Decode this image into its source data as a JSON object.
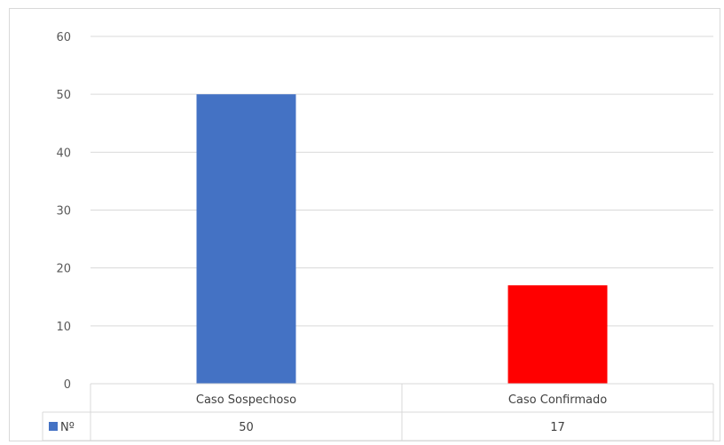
{
  "chart_data": {
    "type": "bar",
    "categories": [
      "Caso Sospechoso",
      "Caso Confirmado"
    ],
    "series": [
      {
        "name": "Nº",
        "values": [
          50,
          17
        ]
      }
    ],
    "colors": [
      "#4472c4",
      "#ff0000"
    ],
    "title": "",
    "xlabel": "",
    "ylabel": "",
    "ylim": [
      0,
      60
    ],
    "yticks": [
      0,
      10,
      20,
      30,
      40,
      50,
      60
    ],
    "grid": true,
    "legend": "data-table-left"
  }
}
